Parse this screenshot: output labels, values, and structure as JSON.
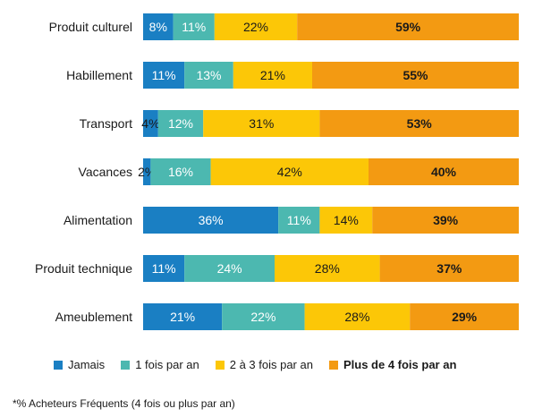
{
  "chart_data": {
    "type": "bar",
    "orientation": "horizontal",
    "stacked": true,
    "categories": [
      "Produit culturel",
      "Habillement",
      "Transport",
      "Vacances",
      "Alimentation",
      "Produit technique",
      "Ameublement"
    ],
    "series": [
      {
        "name": "Jamais",
        "color": "#1a7fc3",
        "values": [
          8,
          11,
          4,
          2,
          36,
          11,
          21
        ],
        "labels": [
          "8%",
          "11%",
          "4%",
          "2%",
          "36%",
          "11%",
          "21%"
        ]
      },
      {
        "name": "1 fois par an",
        "color": "#4cb8b0",
        "values": [
          11,
          13,
          12,
          16,
          11,
          24,
          22
        ],
        "labels": [
          "11%",
          "13%",
          "12%",
          "16%",
          "11%",
          "24%",
          "22%"
        ]
      },
      {
        "name": "2 à 3 fois par an",
        "color": "#fcc707",
        "values": [
          22,
          21,
          31,
          42,
          14,
          28,
          28
        ],
        "labels": [
          "22%",
          "21%",
          "31%",
          "42%",
          "14%",
          "28%",
          "28%"
        ]
      },
      {
        "name": "Plus de 4 fois par an",
        "color": "#f39a12",
        "values": [
          59,
          55,
          53,
          40,
          39,
          37,
          29
        ],
        "labels": [
          "59%",
          "55%",
          "53%",
          "40%",
          "39%",
          "37%",
          "29%"
        ],
        "bold": true
      }
    ],
    "xlim": [
      0,
      100
    ],
    "grid": false,
    "legend_position": "bottom"
  },
  "footnote": "*% Acheteurs Fréquents (4 fois ou plus par an)"
}
